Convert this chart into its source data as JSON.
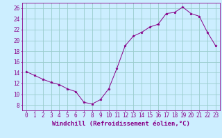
{
  "x": [
    0,
    1,
    2,
    3,
    4,
    5,
    6,
    7,
    8,
    9,
    10,
    11,
    12,
    13,
    14,
    15,
    16,
    17,
    18,
    19,
    20,
    21,
    22,
    23
  ],
  "y": [
    14.2,
    13.5,
    12.8,
    12.2,
    11.8,
    11.0,
    10.5,
    8.5,
    8.2,
    9.0,
    11.0,
    14.8,
    19.0,
    20.8,
    21.5,
    22.5,
    23.0,
    25.0,
    25.2,
    26.2,
    25.0,
    24.5,
    21.5,
    19.0
  ],
  "line_color": "#880088",
  "marker": "*",
  "marker_size": 2.5,
  "bg_color": "#cceeff",
  "grid_color": "#99cccc",
  "xlabel": "Windchill (Refroidissement éolien,°C)",
  "xlabel_color": "#880088",
  "xlim": [
    -0.5,
    23.5
  ],
  "ylim": [
    7,
    27
  ],
  "yticks": [
    8,
    10,
    12,
    14,
    16,
    18,
    20,
    22,
    24,
    26
  ],
  "xticks": [
    0,
    1,
    2,
    3,
    4,
    5,
    6,
    7,
    8,
    9,
    10,
    11,
    12,
    13,
    14,
    15,
    16,
    17,
    18,
    19,
    20,
    21,
    22,
    23
  ],
  "tick_fontsize": 5.5,
  "xlabel_fontsize": 6.5,
  "spine_color": "#880088",
  "linewidth": 0.7
}
